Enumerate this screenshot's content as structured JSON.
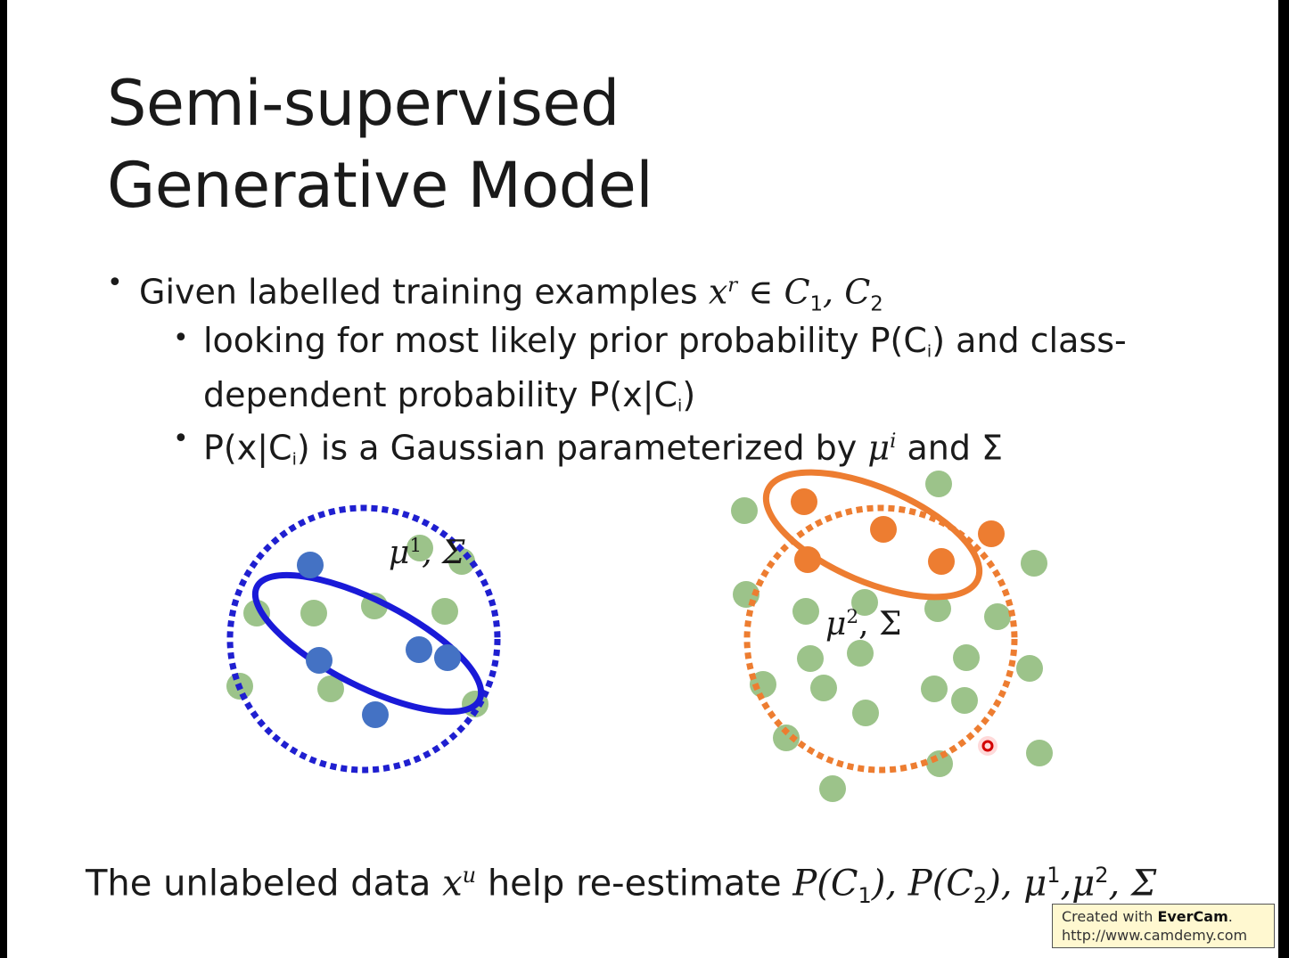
{
  "title": {
    "line1": "Semi-supervised",
    "line2": "Generative Model"
  },
  "bullets": {
    "b1": {
      "text": "Given labelled training examples ",
      "math": "x",
      "sup": "r",
      "rest": " ∈ C",
      "c1": "1",
      "comma": ", C",
      "c2": "2"
    },
    "b2": {
      "line1": "looking for most likely prior probability P(C",
      "i": "i",
      "line1b": ") and class-",
      "line2": "dependent probability P(x|C",
      "line2b": ")"
    },
    "b3": {
      "pre": "P(x|C",
      "i": "i",
      "mid": ") is a Gaussian parameterized by ",
      "mu": "μ",
      "sup": "i",
      "post": " and Σ"
    }
  },
  "plot_labels": {
    "left": {
      "mu": "μ",
      "sup": "1",
      "rest": ", Σ"
    },
    "right": {
      "mu": "μ",
      "sup": "2",
      "rest": ", Σ"
    }
  },
  "footer": {
    "pre": "The unlabeled data ",
    "x": "x",
    "u": "u",
    "mid": " help re-estimate ",
    "formula": "P(C",
    "one": "1",
    "f2": "), P(C",
    "two": "2",
    "f3": "), μ",
    "s1": "1",
    "f4": ",μ",
    "s2": "2",
    "f5": ", Σ"
  },
  "watermark": {
    "line1a": "Created with ",
    "line1b": "EverCam",
    "line1c": ".",
    "line2": "http://www.camdemy.com"
  },
  "colors": {
    "green": "#9cc38a",
    "blue": "#4472c4",
    "orange": "#ed7d31",
    "blue_ring": "#1f1fd0"
  }
}
